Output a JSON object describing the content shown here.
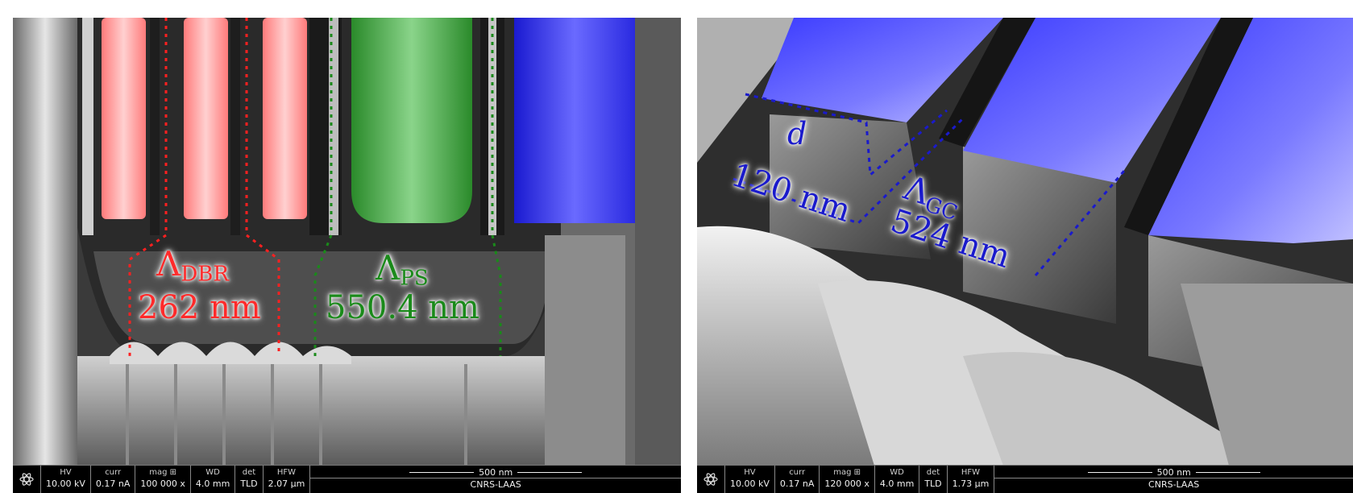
{
  "left": {
    "dbr_label": "Λ",
    "dbr_sub": "DBR",
    "dbr_value": "262 nm",
    "ps_label": "Λ",
    "ps_sub": "PS",
    "ps_value": "550.4 nm",
    "colors": {
      "dbr": "#ff4a4a",
      "ps": "#1a9a1a",
      "gc": "#2a2ae0"
    },
    "bar": {
      "hv_label": "HV",
      "hv_value": "10.00 kV",
      "curr_label": "curr",
      "curr_value": "0.17 nA",
      "mag_label": "mag ⊞",
      "mag_value": "100 000 x",
      "wd_label": "WD",
      "wd_value": "4.0 mm",
      "det_label": "det",
      "det_value": "TLD",
      "hfw_label": "HFW",
      "hfw_value": "2.07 µm",
      "scale_label": "500 nm",
      "org": "CNRS-LAAS"
    }
  },
  "right": {
    "d_label": "d",
    "d_value": "120 nm",
    "gc_label": "Λ",
    "gc_sub": "GC",
    "gc_value": "524 nm",
    "bar": {
      "hv_label": "HV",
      "hv_value": "10.00 kV",
      "curr_label": "curr",
      "curr_value": "0.17 nA",
      "mag_label": "mag ⊞",
      "mag_value": "120 000 x",
      "wd_label": "WD",
      "wd_value": "4.0 mm",
      "det_label": "det",
      "det_value": "TLD",
      "hfw_label": "HFW",
      "hfw_value": "1.73 µm",
      "scale_label": "500 nm",
      "org": "CNRS-LAAS"
    }
  }
}
